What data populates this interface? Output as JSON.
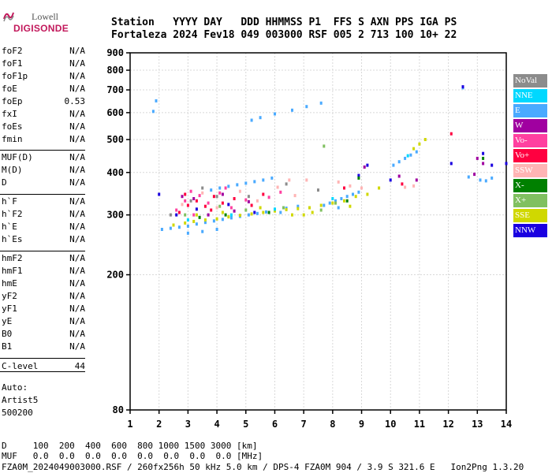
{
  "logo": {
    "line1": "Lowell",
    "line2": "DIGISONDE"
  },
  "header": {
    "labels": "Station   YYYY DAY   DDD HHMMSS P1  FFS S AXN PPS IGA PS",
    "values": "Fortaleza 2024 Fev18 049 003000 RSF 005 2 713 100 10+ 22"
  },
  "params": [
    {
      "name": "foF2",
      "value": "N/A"
    },
    {
      "name": "foF1",
      "value": "N/A"
    },
    {
      "name": "foF1p",
      "value": "N/A"
    },
    {
      "name": "foE",
      "value": "N/A"
    },
    {
      "name": "foEp",
      "value": "0.53"
    },
    {
      "name": "fxI",
      "value": "N/A"
    },
    {
      "name": "foEs",
      "value": "N/A"
    },
    {
      "name": "fmin",
      "value": "N/A"
    },
    {
      "name": "MUF(D)",
      "value": "N/A"
    },
    {
      "name": "M(D)",
      "value": "N/A"
    },
    {
      "name": "D",
      "value": "N/A"
    },
    {
      "name": "h`F",
      "value": "N/A"
    },
    {
      "name": "h`F2",
      "value": "N/A"
    },
    {
      "name": "h`E",
      "value": "N/A"
    },
    {
      "name": "h`Es",
      "value": "N/A"
    },
    {
      "name": "hmF2",
      "value": "N/A"
    },
    {
      "name": "hmF1",
      "value": "N/A"
    },
    {
      "name": "hmE",
      "value": "N/A"
    },
    {
      "name": "yF2",
      "value": "N/A"
    },
    {
      "name": "yF1",
      "value": "N/A"
    },
    {
      "name": "yE",
      "value": "N/A"
    },
    {
      "name": "B0",
      "value": "N/A"
    },
    {
      "name": "B1",
      "value": "N/A"
    },
    {
      "name": "C-level",
      "value": "44"
    }
  ],
  "autoscaling": {
    "line1": "Auto:",
    "line2": "Artist5",
    "line3": "500200"
  },
  "legend": [
    {
      "label": "NoVal",
      "color": "#8c8c8c"
    },
    {
      "label": "NNE",
      "color": "#00d8ff"
    },
    {
      "label": "E",
      "color": "#4aaaff"
    },
    {
      "label": "W",
      "color": "#a000a0"
    },
    {
      "label": "Vo-",
      "color": "#ff40a0"
    },
    {
      "label": "Vo+",
      "color": "#ff0040"
    },
    {
      "label": "SSW",
      "color": "#ffb4b4"
    },
    {
      "label": "X-",
      "color": "#008000"
    },
    {
      "label": "X+",
      "color": "#80c060"
    },
    {
      "label": "SSE",
      "color": "#d0d800"
    },
    {
      "label": "NNW",
      "color": "#1a00e0"
    }
  ],
  "footer": {
    "d_line": "D     100  200  400  600  800 1000 1500 3000 [km]",
    "muf_line": "MUF   0.0  0.0  0.0  0.0  0.0  0.0  0.0  0.0 [MHz]",
    "file_line": "FZA0M_2024049003000.RSF / 260fx256h 50 kHz 5.0 km / DPS-4 FZA0M 904 / 3.9 S 321.6 E   Ion2Png 1.3.20"
  },
  "chart_data": {
    "type": "scatter",
    "xlim": [
      1,
      14
    ],
    "ylim": [
      80,
      900
    ],
    "y_scale": "log",
    "x_ticks": [
      1,
      2,
      3,
      4,
      5,
      6,
      7,
      8,
      9,
      10,
      11,
      12,
      13,
      14
    ],
    "y_ticks": [
      80,
      200,
      300,
      400,
      500,
      600,
      700,
      800,
      900
    ],
    "grid": true,
    "series": [
      {
        "name": "E",
        "color": "#4aaaff",
        "points": [
          [
            2.1,
            272
          ],
          [
            2.4,
            274
          ],
          [
            2.7,
            276
          ],
          [
            3.0,
            278
          ],
          [
            3.3,
            282
          ],
          [
            3.6,
            285
          ],
          [
            3.9,
            288
          ],
          [
            4.2,
            291
          ],
          [
            4.5,
            294
          ],
          [
            4.8,
            297
          ],
          [
            5.1,
            300
          ],
          [
            5.4,
            303
          ],
          [
            5.7,
            306
          ],
          [
            6.0,
            310
          ],
          [
            6.4,
            314
          ],
          [
            6.8,
            318
          ],
          [
            7.7,
            320
          ],
          [
            7.9,
            325
          ],
          [
            8.1,
            330
          ],
          [
            8.3,
            335
          ],
          [
            8.5,
            340
          ],
          [
            8.7,
            345
          ],
          [
            8.9,
            350
          ],
          [
            3.8,
            355
          ],
          [
            4.1,
            360
          ],
          [
            4.4,
            364
          ],
          [
            4.7,
            368
          ],
          [
            5.0,
            372
          ],
          [
            5.3,
            376
          ],
          [
            5.6,
            380
          ],
          [
            5.9,
            385
          ],
          [
            10.1,
            420
          ],
          [
            10.3,
            430
          ],
          [
            10.5,
            440
          ],
          [
            10.7,
            450
          ],
          [
            10.9,
            460
          ],
          [
            13.1,
            380
          ],
          [
            13.3,
            378
          ],
          [
            13.5,
            385
          ],
          [
            5.2,
            570
          ],
          [
            5.5,
            580
          ],
          [
            6.0,
            595
          ],
          [
            6.6,
            610
          ],
          [
            7.1,
            625
          ],
          [
            7.6,
            640
          ],
          [
            1.9,
            650
          ],
          [
            1.8,
            605
          ],
          [
            12.5,
            710
          ],
          [
            3.0,
            265
          ],
          [
            3.5,
            268
          ],
          [
            4.0,
            272
          ],
          [
            6.2,
            305
          ],
          [
            8.2,
            315
          ],
          [
            12.7,
            388
          ]
        ]
      },
      {
        "name": "SSE",
        "color": "#d0d800",
        "points": [
          [
            2.5,
            280
          ],
          [
            2.9,
            284
          ],
          [
            3.2,
            287
          ],
          [
            3.6,
            290
          ],
          [
            4.0,
            292
          ],
          [
            4.4,
            296
          ],
          [
            4.8,
            299
          ],
          [
            5.2,
            302
          ],
          [
            5.6,
            305
          ],
          [
            6.0,
            308
          ],
          [
            6.4,
            311
          ],
          [
            6.8,
            313
          ],
          [
            7.2,
            315
          ],
          [
            7.6,
            320
          ],
          [
            8.0,
            325
          ],
          [
            8.4,
            330
          ],
          [
            8.8,
            340
          ],
          [
            9.2,
            345
          ],
          [
            9.6,
            360
          ],
          [
            10.8,
            470
          ],
          [
            11.0,
            485
          ],
          [
            11.2,
            500
          ],
          [
            3.3,
            300
          ],
          [
            4.2,
            305
          ],
          [
            5.5,
            315
          ],
          [
            7.0,
            300
          ],
          [
            7.3,
            305
          ],
          [
            6.6,
            300
          ],
          [
            8.6,
            318
          ]
        ]
      },
      {
        "name": "Vo+",
        "color": "#ff0040",
        "points": [
          [
            2.7,
            305
          ],
          [
            3.0,
            320
          ],
          [
            3.3,
            330
          ],
          [
            3.6,
            318
          ],
          [
            3.9,
            340
          ],
          [
            4.2,
            325
          ],
          [
            4.6,
            335
          ],
          [
            5.2,
            320
          ],
          [
            5.6,
            345
          ],
          [
            2.9,
            345
          ],
          [
            3.8,
            310
          ],
          [
            12.1,
            520
          ],
          [
            10.4,
            370
          ],
          [
            8.4,
            360
          ]
        ]
      },
      {
        "name": "Vo-",
        "color": "#ff40a0",
        "points": [
          [
            2.6,
            310
          ],
          [
            2.9,
            330
          ],
          [
            3.1,
            352
          ],
          [
            3.4,
            342
          ],
          [
            3.7,
            325
          ],
          [
            4.1,
            348
          ],
          [
            4.5,
            315
          ],
          [
            5.0,
            332
          ],
          [
            5.8,
            338
          ],
          [
            6.2,
            350
          ],
          [
            3.2,
            300
          ],
          [
            4.3,
            360
          ]
        ]
      },
      {
        "name": "SSW",
        "color": "#ffb4b4",
        "points": [
          [
            2.8,
            322
          ],
          [
            3.5,
            348
          ],
          [
            4.0,
            315
          ],
          [
            4.8,
            352
          ],
          [
            5.4,
            330
          ],
          [
            6.1,
            362
          ],
          [
            6.7,
            342
          ],
          [
            7.1,
            380
          ],
          [
            8.2,
            375
          ],
          [
            8.6,
            365
          ],
          [
            9.0,
            360
          ],
          [
            10.5,
            362
          ],
          [
            10.8,
            365
          ],
          [
            6.5,
            380
          ]
        ]
      },
      {
        "name": "W",
        "color": "#a000a0",
        "points": [
          [
            2.8,
            340
          ],
          [
            3.2,
            335
          ],
          [
            3.7,
            300
          ],
          [
            4.2,
            345
          ],
          [
            4.6,
            308
          ],
          [
            5.1,
            328
          ],
          [
            9.1,
            415
          ],
          [
            10.3,
            390
          ],
          [
            10.9,
            380
          ],
          [
            12.9,
            395
          ],
          [
            13.0,
            440
          ],
          [
            13.2,
            425
          ]
        ]
      },
      {
        "name": "NNW",
        "color": "#1a00e0",
        "points": [
          [
            2.0,
            345
          ],
          [
            2.6,
            300
          ],
          [
            3.3,
            312
          ],
          [
            4.4,
            322
          ],
          [
            5.3,
            305
          ],
          [
            8.9,
            392
          ],
          [
            9.2,
            420
          ],
          [
            10.0,
            380
          ],
          [
            13.2,
            455
          ],
          [
            13.5,
            420
          ],
          [
            14.0,
            425
          ],
          [
            12.5,
            715
          ],
          [
            12.1,
            425
          ]
        ]
      },
      {
        "name": "X-",
        "color": "#008000",
        "points": [
          [
            3.4,
            295
          ],
          [
            4.3,
            300
          ],
          [
            5.8,
            305
          ],
          [
            8.5,
            330
          ],
          [
            8.9,
            385
          ],
          [
            13.2,
            440
          ]
        ]
      },
      {
        "name": "X+",
        "color": "#80c060",
        "points": [
          [
            2.9,
            300
          ],
          [
            4.1,
            318
          ],
          [
            5.0,
            310
          ],
          [
            6.3,
            315
          ],
          [
            7.6,
            310
          ],
          [
            8.1,
            325
          ],
          [
            7.7,
            478
          ]
        ]
      },
      {
        "name": "NNE",
        "color": "#00d8ff",
        "points": [
          [
            3.0,
            290
          ],
          [
            4.5,
            300
          ],
          [
            6.0,
            312
          ],
          [
            8.0,
            335
          ],
          [
            10.6,
            448
          ]
        ]
      },
      {
        "name": "NoVal",
        "color": "#8c8c8c",
        "points": [
          [
            2.4,
            300
          ],
          [
            3.5,
            360
          ],
          [
            4.0,
            340
          ],
          [
            5.1,
            340
          ],
          [
            6.4,
            370
          ],
          [
            7.5,
            355
          ],
          [
            3.1,
            330
          ]
        ]
      }
    ]
  }
}
